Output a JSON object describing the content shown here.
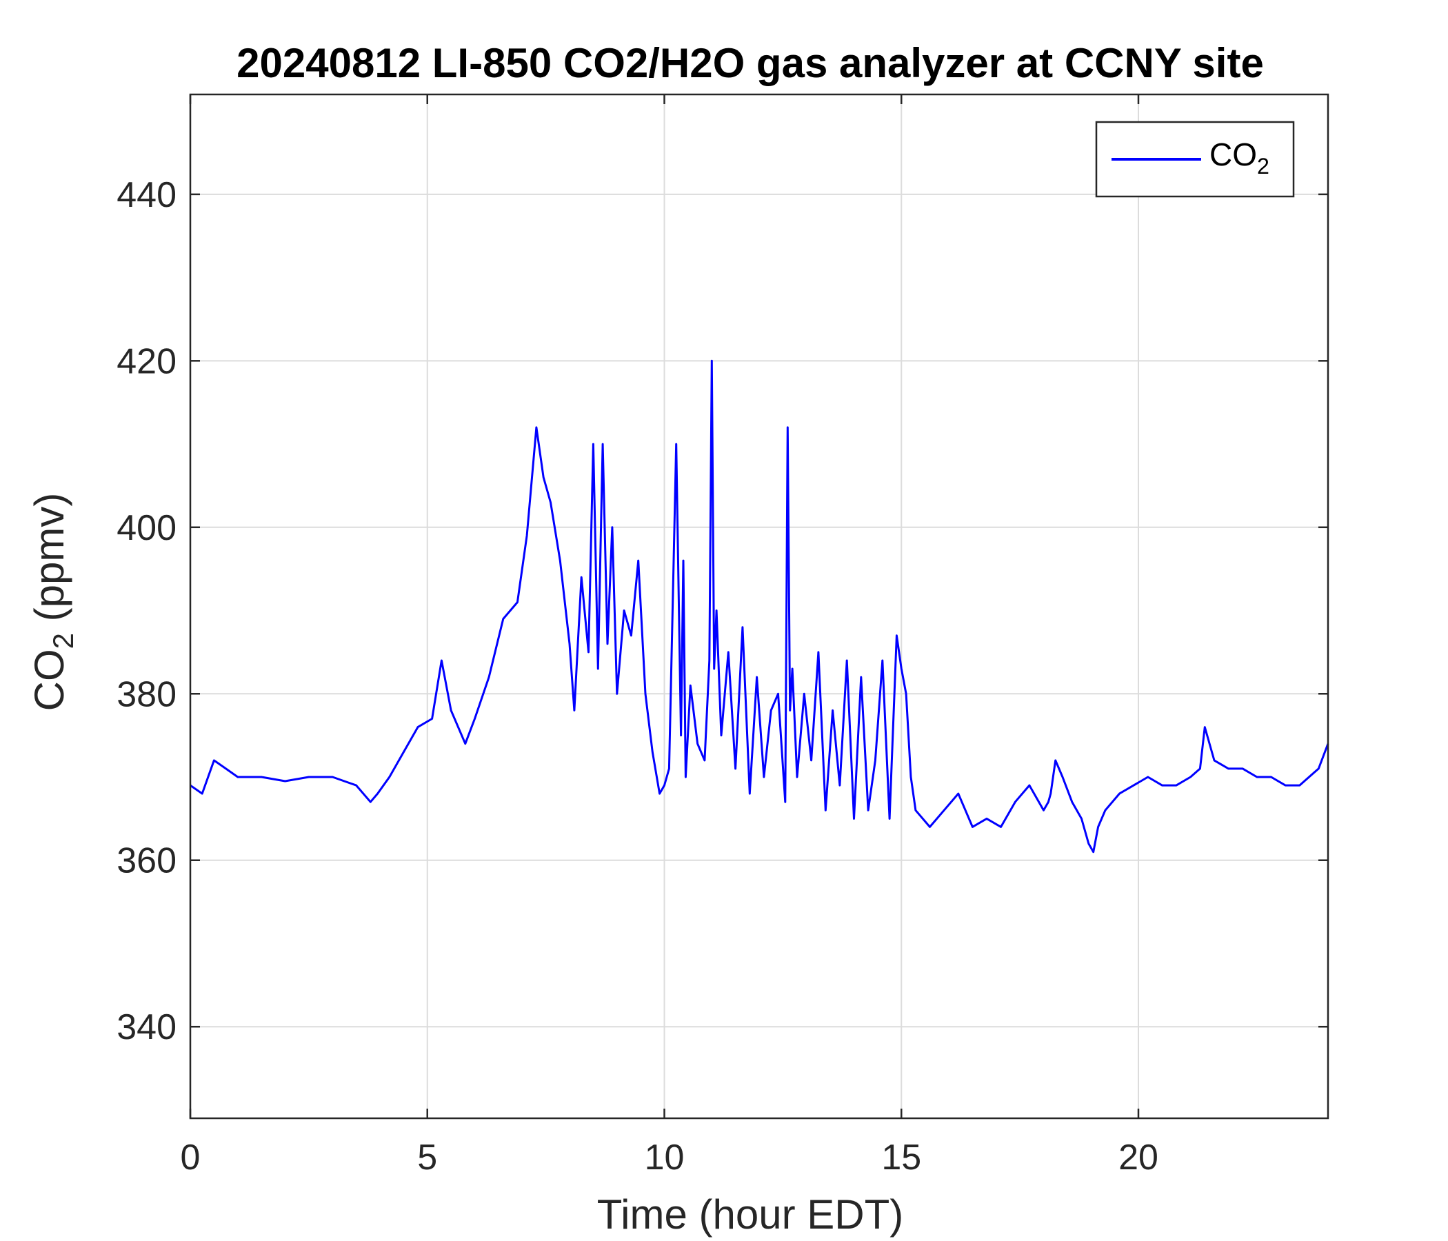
{
  "chart_data": {
    "type": "line",
    "title": "20240812 LI-850 CO2/H2O gas analyzer at CCNY site",
    "xlabel": "Time (hour EDT)",
    "ylabel": {
      "base": "CO",
      "subscript": "2",
      "suffix": " (ppmv)"
    },
    "xlim": [
      0,
      24
    ],
    "ylim": [
      329,
      452
    ],
    "xticks": [
      0,
      5,
      10,
      15,
      20
    ],
    "yticks": [
      340,
      360,
      380,
      400,
      420,
      440
    ],
    "grid": true,
    "legend_position": "top-right",
    "series": [
      {
        "name": "CO2",
        "legend_label": {
          "base": "CO",
          "subscript": "2"
        },
        "color": "#0000ff",
        "x": [
          0,
          0.25,
          0.5,
          0.75,
          1.0,
          1.5,
          2.0,
          2.5,
          3.0,
          3.5,
          3.8,
          3.95,
          4.2,
          4.5,
          4.8,
          5.1,
          5.3,
          5.5,
          5.8,
          6.0,
          6.3,
          6.6,
          6.9,
          7.1,
          7.3,
          7.45,
          7.6,
          7.8,
          8.0,
          8.1,
          8.25,
          8.4,
          8.5,
          8.6,
          8.7,
          8.8,
          8.9,
          9.0,
          9.15,
          9.3,
          9.45,
          9.6,
          9.75,
          9.9,
          10.0,
          10.1,
          10.25,
          10.35,
          10.4,
          10.45,
          10.55,
          10.7,
          10.85,
          10.95,
          11.0,
          11.05,
          11.1,
          11.2,
          11.35,
          11.5,
          11.65,
          11.8,
          11.95,
          12.1,
          12.25,
          12.4,
          12.55,
          12.6,
          12.65,
          12.7,
          12.8,
          12.95,
          13.1,
          13.25,
          13.4,
          13.55,
          13.7,
          13.85,
          14.0,
          14.15,
          14.3,
          14.45,
          14.6,
          14.75,
          14.9,
          15.0,
          15.1,
          15.2,
          15.3,
          15.6,
          15.9,
          16.2,
          16.5,
          16.8,
          17.1,
          17.4,
          17.7,
          18.0,
          18.1,
          18.15,
          18.25,
          18.4,
          18.6,
          18.8,
          18.95,
          19.05,
          19.15,
          19.3,
          19.6,
          19.9,
          20.2,
          20.5,
          20.8,
          21.1,
          21.3,
          21.4,
          21.6,
          21.9,
          22.2,
          22.5,
          22.8,
          23.1,
          23.4,
          23.6,
          23.8,
          24.0
        ],
        "y": [
          369,
          368,
          372,
          371,
          370,
          370,
          369.5,
          370,
          370,
          369,
          367,
          368,
          370,
          373,
          376,
          377,
          384,
          378,
          374,
          377,
          382,
          389,
          391,
          399,
          412,
          406,
          403,
          396,
          386,
          378,
          394,
          385,
          410,
          383,
          410,
          386,
          400,
          380,
          390,
          387,
          396,
          380,
          373,
          368,
          369,
          371,
          410,
          375,
          396,
          370,
          381,
          374,
          372,
          384,
          420,
          383,
          390,
          375,
          385,
          371,
          388,
          368,
          382,
          370,
          378,
          380,
          367,
          412,
          378,
          383,
          370,
          380,
          372,
          385,
          366,
          378,
          369,
          384,
          365,
          382,
          366,
          372,
          384,
          365,
          387,
          383,
          380,
          370,
          366,
          364,
          366,
          368,
          364,
          365,
          364,
          367,
          369,
          366,
          367,
          368,
          372,
          370,
          367,
          365,
          362,
          361,
          364,
          366,
          368,
          369,
          370,
          369,
          369,
          370,
          371,
          376,
          372,
          371,
          371,
          370,
          370,
          369,
          369,
          370,
          371,
          374
        ]
      }
    ]
  }
}
